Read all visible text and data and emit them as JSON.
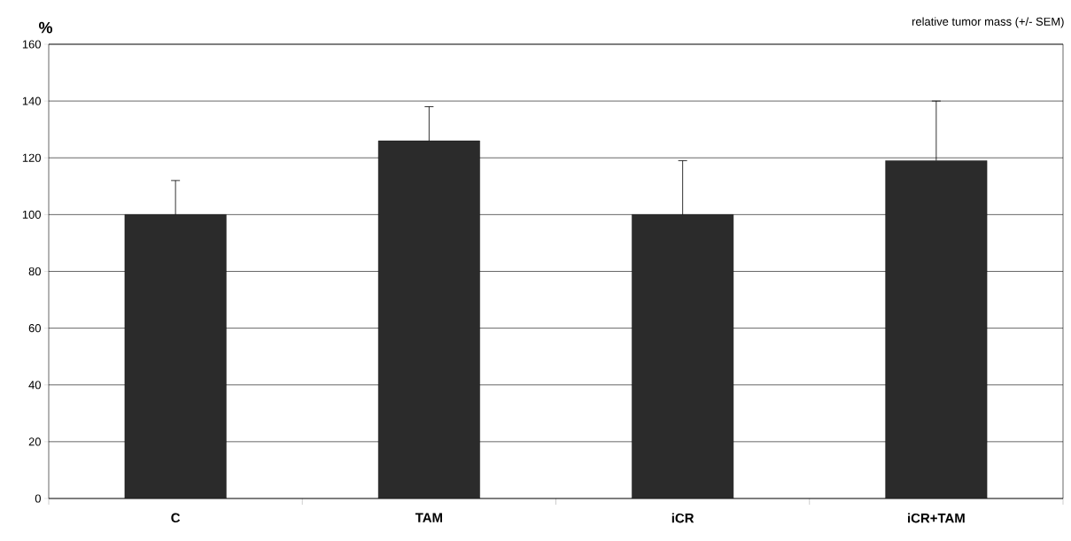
{
  "chart_data": {
    "type": "bar",
    "title": "relative tumor mass (+/- SEM)",
    "ylabel": "%",
    "categories": [
      "C",
      "TAM",
      "iCR",
      "iCR+TAM"
    ],
    "values": [
      100,
      126,
      100,
      119
    ],
    "errors": [
      12,
      12,
      19,
      21
    ],
    "color": "#2b2b2b",
    "ylim": [
      0,
      160
    ],
    "yticks": [
      0,
      20,
      40,
      60,
      80,
      100,
      120,
      140,
      160
    ],
    "grid": "y"
  }
}
